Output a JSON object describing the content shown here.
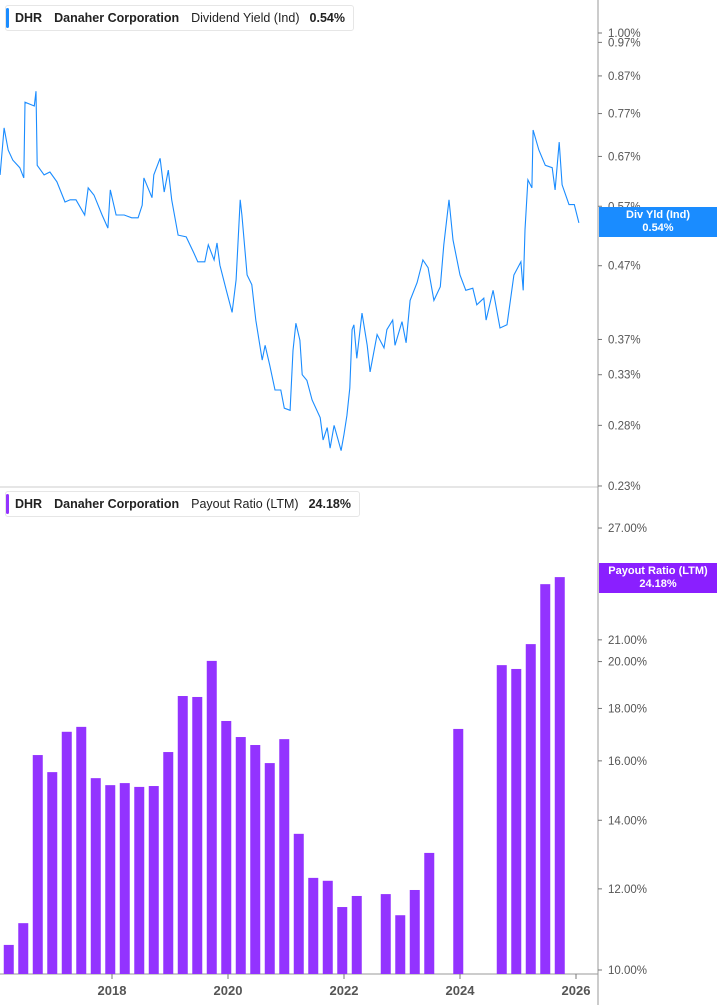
{
  "top_panel": {
    "ticker": "DHR",
    "company": "Danaher Corporation",
    "metric": "Dividend Yield (Ind)",
    "value": "0.54%",
    "badge_label": "Div Yld (Ind)",
    "badge_value": "0.54%"
  },
  "bottom_panel": {
    "ticker": "DHR",
    "company": "Danaher Corporation",
    "metric": "Payout Ratio (LTM)",
    "value": "24.18%",
    "badge_label": "Payout Ratio (LTM)",
    "badge_value": "24.18%"
  },
  "colors": {
    "yield_line": "#1a8cff",
    "payout_bars": "#9333ff",
    "yield_badge": "#1a8cff",
    "payout_badge": "#8a1fff"
  },
  "chart_data": [
    {
      "type": "line",
      "title": "Dividend Yield (Ind)",
      "y_scale": "log",
      "ylim": [
        0.23,
        1.05
      ],
      "y_ticks": [
        1.0,
        0.97,
        0.87,
        0.77,
        0.67,
        0.57,
        0.47,
        0.37,
        0.33,
        0.28,
        0.23
      ],
      "y_tick_labels": [
        "1.00%",
        "0.97%",
        "0.87%",
        "0.77%",
        "0.67%",
        "0.57%",
        "0.47%",
        "0.37%",
        "0.33%",
        "0.28%",
        "0.23%"
      ],
      "x": [
        2016.07,
        2016.14,
        2016.21,
        2016.29,
        2016.41,
        2016.48,
        2016.5,
        2016.66,
        2016.69,
        2016.71,
        2016.83,
        2016.93,
        2017.05,
        2017.19,
        2017.28,
        2017.38,
        2017.53,
        2017.59,
        2017.69,
        2017.83,
        2017.93,
        2017.97,
        2018.07,
        2018.21,
        2018.34,
        2018.45,
        2018.52,
        2018.55,
        2018.69,
        2018.72,
        2018.83,
        2018.9,
        2018.97,
        2019.03,
        2019.14,
        2019.28,
        2019.41,
        2019.48,
        2019.6,
        2019.66,
        2019.76,
        2019.81,
        2019.86,
        2019.97,
        2020.07,
        2020.14,
        2020.21,
        2020.24,
        2020.33,
        2020.41,
        2020.48,
        2020.59,
        2020.64,
        2020.72,
        2020.81,
        2020.91,
        2020.97,
        2021.07,
        2021.12,
        2021.17,
        2021.24,
        2021.28,
        2021.36,
        2021.45,
        2021.59,
        2021.64,
        2021.71,
        2021.76,
        2021.83,
        2021.95,
        2022.0,
        2022.05,
        2022.1,
        2022.14,
        2022.17,
        2022.22,
        2022.31,
        2022.4,
        2022.45,
        2022.57,
        2022.69,
        2022.74,
        2022.84,
        2022.88,
        2023.0,
        2023.07,
        2023.14,
        2023.26,
        2023.36,
        2023.45,
        2023.55,
        2023.66,
        2023.72,
        2023.81,
        2023.88,
        2024.0,
        2024.1,
        2024.22,
        2024.29,
        2024.41,
        2024.45,
        2024.57,
        2024.69,
        2024.81,
        2024.93,
        2025.05,
        2025.09,
        2025.12,
        2025.17,
        2025.24,
        2025.26,
        2025.36,
        2025.47,
        2025.59,
        2025.64,
        2025.71,
        2025.76,
        2025.88,
        2025.97,
        2026.05
      ],
      "values": [
        0.631,
        0.735,
        0.684,
        0.662,
        0.646,
        0.625,
        0.799,
        0.789,
        0.828,
        0.651,
        0.631,
        0.637,
        0.617,
        0.578,
        0.582,
        0.582,
        0.554,
        0.605,
        0.591,
        0.554,
        0.531,
        0.601,
        0.554,
        0.554,
        0.549,
        0.549,
        0.572,
        0.625,
        0.586,
        0.631,
        0.666,
        0.597,
        0.641,
        0.582,
        0.519,
        0.516,
        0.49,
        0.476,
        0.476,
        0.503,
        0.479,
        0.506,
        0.471,
        0.434,
        0.404,
        0.449,
        0.582,
        0.554,
        0.456,
        0.442,
        0.394,
        0.346,
        0.363,
        0.34,
        0.314,
        0.314,
        0.296,
        0.294,
        0.357,
        0.39,
        0.369,
        0.33,
        0.324,
        0.304,
        0.287,
        0.267,
        0.278,
        0.26,
        0.28,
        0.258,
        0.272,
        0.289,
        0.316,
        0.382,
        0.388,
        0.348,
        0.403,
        0.363,
        0.333,
        0.376,
        0.36,
        0.382,
        0.394,
        0.363,
        0.392,
        0.366,
        0.42,
        0.445,
        0.479,
        0.467,
        0.42,
        0.439,
        0.503,
        0.582,
        0.511,
        0.456,
        0.434,
        0.437,
        0.414,
        0.423,
        0.394,
        0.434,
        0.384,
        0.388,
        0.456,
        0.476,
        0.434,
        0.528,
        0.621,
        0.605,
        0.73,
        0.684,
        0.651,
        0.646,
        0.601,
        0.702,
        0.611,
        0.573,
        0.573,
        0.54
      ]
    },
    {
      "type": "bar",
      "title": "Payout Ratio (LTM)",
      "y_scale": "log",
      "ylim": [
        10,
        28
      ],
      "y_ticks": [
        27,
        21,
        20,
        18,
        16,
        14,
        12,
        10
      ],
      "y_tick_labels": [
        "27.00%",
        "21.00%",
        "20.00%",
        "18.00%",
        "16.00%",
        "14.00%",
        "12.00%",
        "10.00%"
      ],
      "x_ticks": [
        2018,
        2020,
        2022,
        2024,
        2026
      ],
      "x_tick_labels": [
        "2018",
        "2020",
        "2022",
        "2024",
        "2026"
      ],
      "x_start": 2016.22,
      "x_step": 0.25,
      "values": [
        10.58,
        11.11,
        16.21,
        15.6,
        17.08,
        17.27,
        15.39,
        15.15,
        15.22,
        15.09,
        15.12,
        16.32,
        18.51,
        18.47,
        20.03,
        17.5,
        16.88,
        16.58,
        15.92,
        16.8,
        13.58,
        12.3,
        12.22,
        11.52,
        11.81,
        null,
        11.86,
        11.31,
        11.97,
        13.01,
        null,
        17.19,
        null,
        null,
        19.84,
        19.67,
        20.8,
        23.8,
        24.18
      ]
    }
  ]
}
